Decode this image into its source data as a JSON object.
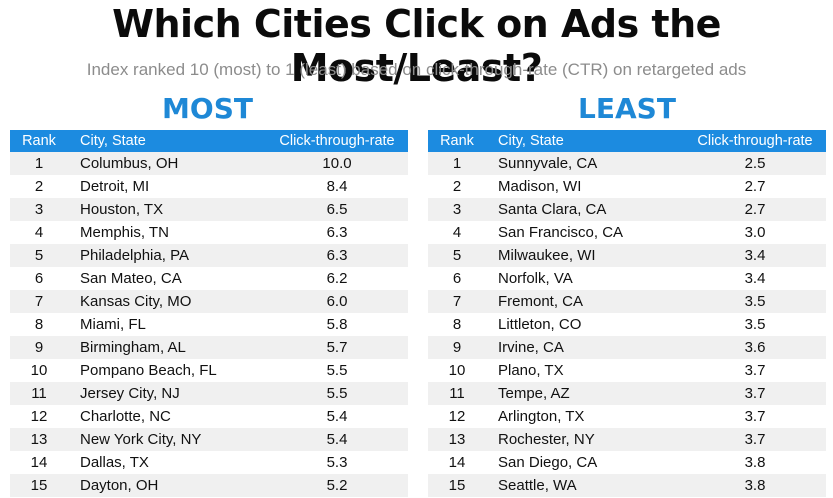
{
  "title": "Which Cities Click on Ads the Most/Least?",
  "subtitle": "Index ranked 10 (most) to 1 (least) based on click-through-rate (CTR) on retargeted ads",
  "colors": {
    "accent": "#1e88d6",
    "header_bg": "#1c8be0",
    "stripe": "#f0f0f0"
  },
  "chart_data": {
    "type": "table",
    "title": "Which Cities Click on Ads the Most/Least?",
    "subtitle": "Index ranked 10 (most) to 1 (least) based on click-through-rate (CTR) on retargeted ads",
    "columns": [
      "Rank",
      "City, State",
      "Click-through-rate"
    ],
    "tables": [
      {
        "name": "MOST",
        "rows": [
          {
            "rank": "1",
            "city": "Columbus, OH",
            "ctr": "10.0"
          },
          {
            "rank": "2",
            "city": "Detroit, MI",
            "ctr": "8.4"
          },
          {
            "rank": "3",
            "city": "Houston, TX",
            "ctr": "6.5"
          },
          {
            "rank": "4",
            "city": "Memphis, TN",
            "ctr": "6.3"
          },
          {
            "rank": "5",
            "city": "Philadelphia, PA",
            "ctr": "6.3"
          },
          {
            "rank": "6",
            "city": "San Mateo, CA",
            "ctr": "6.2"
          },
          {
            "rank": "7",
            "city": "Kansas City, MO",
            "ctr": "6.0"
          },
          {
            "rank": "8",
            "city": "Miami, FL",
            "ctr": "5.8"
          },
          {
            "rank": "9",
            "city": "Birmingham, AL",
            "ctr": "5.7"
          },
          {
            "rank": "10",
            "city": "Pompano Beach, FL",
            "ctr": "5.5"
          },
          {
            "rank": "11",
            "city": "Jersey City, NJ",
            "ctr": "5.5"
          },
          {
            "rank": "12",
            "city": "Charlotte, NC",
            "ctr": "5.4"
          },
          {
            "rank": "13",
            "city": "New York City, NY",
            "ctr": "5.4"
          },
          {
            "rank": "14",
            "city": "Dallas, TX",
            "ctr": "5.3"
          },
          {
            "rank": "15",
            "city": "Dayton, OH",
            "ctr": "5.2"
          }
        ]
      },
      {
        "name": "LEAST",
        "rows": [
          {
            "rank": "1",
            "city": "Sunnyvale, CA",
            "ctr": "2.5"
          },
          {
            "rank": "2",
            "city": "Madison, WI",
            "ctr": "2.7"
          },
          {
            "rank": "3",
            "city": "Santa Clara, CA",
            "ctr": "2.7"
          },
          {
            "rank": "4",
            "city": "San Francisco, CA",
            "ctr": "3.0"
          },
          {
            "rank": "5",
            "city": "Milwaukee, WI",
            "ctr": "3.4"
          },
          {
            "rank": "6",
            "city": "Norfolk, VA",
            "ctr": "3.4"
          },
          {
            "rank": "7",
            "city": "Fremont, CA",
            "ctr": "3.5"
          },
          {
            "rank": "8",
            "city": "Littleton, CO",
            "ctr": "3.5"
          },
          {
            "rank": "9",
            "city": "Irvine, CA",
            "ctr": "3.6"
          },
          {
            "rank": "10",
            "city": "Plano, TX",
            "ctr": "3.7"
          },
          {
            "rank": "11",
            "city": "Tempe, AZ",
            "ctr": "3.7"
          },
          {
            "rank": "12",
            "city": "Arlington, TX",
            "ctr": "3.7"
          },
          {
            "rank": "13",
            "city": "Rochester, NY",
            "ctr": "3.7"
          },
          {
            "rank": "14",
            "city": "San Diego, CA",
            "ctr": "3.8"
          },
          {
            "rank": "15",
            "city": "Seattle, WA",
            "ctr": "3.8"
          }
        ]
      }
    ]
  }
}
